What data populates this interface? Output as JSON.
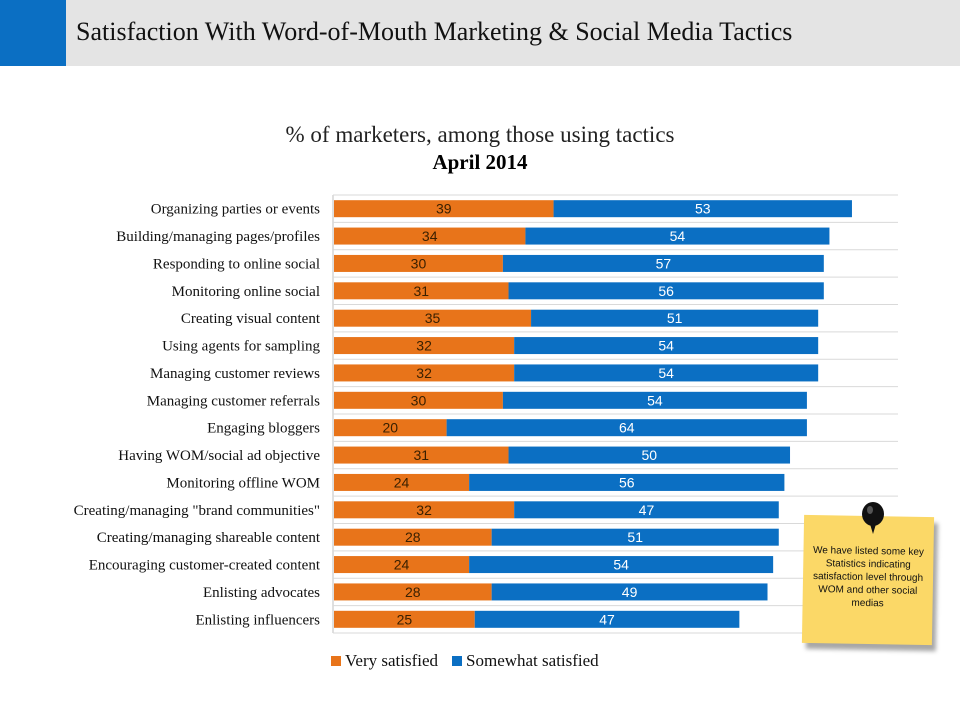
{
  "header": {
    "title": "Satisfaction With Word-of-Mouth Marketing & Social Media Tactics",
    "accent_color": "#0b6fc3",
    "bar_color": "#e4e4e4"
  },
  "chart_data": {
    "type": "bar",
    "orientation": "horizontal",
    "stacked": true,
    "title": "% of marketers, among those using tactics",
    "subtitle": "April 2014",
    "categories": [
      "Organizing parties or events",
      "Building/managing pages/profiles",
      "Responding to online social",
      "Monitoring online social",
      "Creating visual content",
      "Using agents for sampling",
      "Managing customer reviews",
      "Managing customer referrals",
      "Engaging bloggers",
      "Having WOM/social ad objective",
      "Monitoring offline WOM",
      "Creating/managing \"brand communities\"",
      "Creating/managing shareable content",
      "Encouraging customer-created content",
      "Enlisting advocates",
      "Enlisting influencers"
    ],
    "series": [
      {
        "name": "Very satisfied",
        "color": "#e8741a",
        "values": [
          39,
          34,
          30,
          31,
          35,
          32,
          32,
          30,
          20,
          31,
          24,
          32,
          28,
          24,
          28,
          25
        ]
      },
      {
        "name": "Somewhat satisfied",
        "color": "#0b6fc3",
        "values": [
          53,
          54,
          57,
          56,
          51,
          54,
          54,
          54,
          64,
          50,
          56,
          47,
          51,
          54,
          49,
          47
        ]
      }
    ],
    "xlim": [
      0,
      100
    ],
    "grid": true,
    "legend_position": "bottom"
  },
  "note": {
    "text": "We have listed some key Statistics indicating satisfaction level through WOM and other social medias",
    "color": "#fbd867"
  }
}
